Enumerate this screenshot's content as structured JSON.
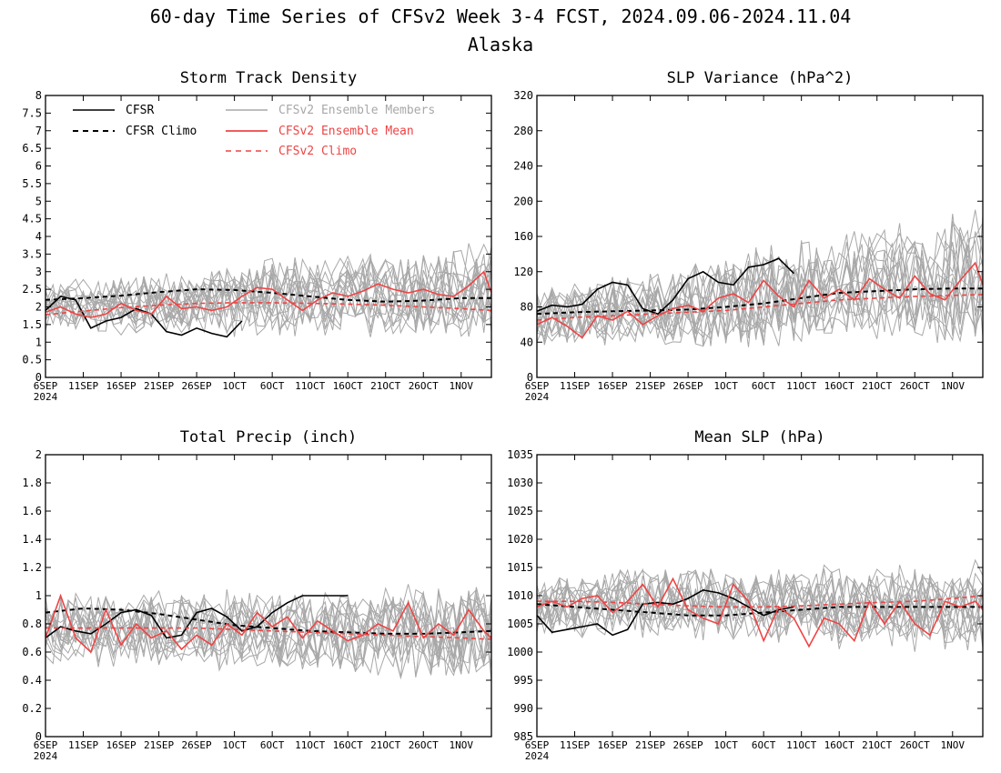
{
  "figure": {
    "title": "60-day Time Series of CFSv2 Week 3-4 FCST, 2024.09.06-2024.11.04",
    "subtitle": "Alaska"
  },
  "colors": {
    "cfsr": "#000000",
    "ensemble_member": "#a8a8a8",
    "ensemble_mean": "#ee4444",
    "cfsv2_climo": "#ee4444"
  },
  "x_axis": {
    "ticks": [
      "6SEP",
      "11SEP",
      "16SEP",
      "21SEP",
      "26SEP",
      "1OCT",
      "6OCT",
      "11OCT",
      "16OCT",
      "21OCT",
      "26OCT",
      "1NOV"
    ],
    "year_label": "2024"
  },
  "legend": {
    "cfsr": "CFSR",
    "cfsr_climo": "CFSR Climo",
    "members": "CFSv2 Ensemble Members",
    "mean": "CFSv2 Ensemble Mean",
    "cfsv2_climo": "CFSv2 Climo"
  },
  "chart_data": [
    {
      "type": "line",
      "title": "Storm Track Density",
      "ylim": [
        0,
        8
      ],
      "yticks": [
        "0",
        "0.5",
        "1",
        "1.5",
        "2",
        "2.5",
        "3",
        "3.5",
        "4",
        "4.5",
        "5",
        "5.5",
        "6",
        "6.5",
        "7",
        "7.5",
        "8"
      ],
      "x_days": [
        0,
        59
      ],
      "series": [
        {
          "name": "CFSR",
          "x": [
            0,
            2,
            4,
            6,
            8,
            10,
            12,
            14,
            16,
            18,
            20,
            22,
            24,
            26
          ],
          "y": [
            1.9,
            2.3,
            2.2,
            1.4,
            1.6,
            1.7,
            1.95,
            1.8,
            1.3,
            1.2,
            1.4,
            1.25,
            1.15,
            1.6
          ]
        },
        {
          "name": "CFSR Climo",
          "x": [
            0,
            5,
            10,
            15,
            20,
            25,
            30,
            35,
            40,
            45,
            50,
            55,
            59
          ],
          "y": [
            2.2,
            2.25,
            2.32,
            2.42,
            2.5,
            2.48,
            2.4,
            2.3,
            2.2,
            2.15,
            2.18,
            2.25,
            2.25
          ]
        },
        {
          "name": "CFSv2 Ensemble Mean",
          "x": [
            0,
            2,
            4,
            6,
            8,
            10,
            12,
            14,
            16,
            18,
            20,
            22,
            24,
            26,
            28,
            30,
            32,
            34,
            36,
            38,
            40,
            42,
            44,
            46,
            48,
            50,
            52,
            54,
            56,
            58,
            59
          ],
          "y": [
            1.85,
            2.0,
            1.8,
            1.7,
            1.8,
            2.1,
            1.9,
            1.8,
            2.3,
            1.95,
            2.0,
            1.9,
            2.0,
            2.3,
            2.55,
            2.5,
            2.2,
            1.9,
            2.2,
            2.4,
            2.3,
            2.45,
            2.65,
            2.5,
            2.4,
            2.5,
            2.35,
            2.3,
            2.6,
            3.0,
            2.4
          ]
        },
        {
          "name": "CFSv2 Climo",
          "x": [
            0,
            5,
            10,
            15,
            20,
            25,
            30,
            35,
            40,
            45,
            50,
            55,
            59
          ],
          "y": [
            1.78,
            1.88,
            1.98,
            2.05,
            2.1,
            2.12,
            2.12,
            2.1,
            2.08,
            2.05,
            2.0,
            1.95,
            1.9
          ]
        }
      ],
      "members_band": {
        "center": [
          1.95,
          2.0,
          2.05,
          2.1,
          2.15,
          2.2,
          2.25,
          2.3,
          2.35,
          2.3,
          2.35,
          2.4,
          2.45
        ],
        "spread": [
          0.8,
          0.85,
          0.9,
          0.95,
          1.0,
          1.1,
          1.15,
          1.2,
          1.2,
          1.25,
          1.3,
          1.35,
          1.4
        ]
      }
    },
    {
      "type": "line",
      "title": "SLP Variance (hPa^2)",
      "ylim": [
        0,
        320
      ],
      "yticks": [
        "0",
        "40",
        "80",
        "120",
        "160",
        "200",
        "240",
        "280",
        "320"
      ],
      "x_days": [
        0,
        59
      ],
      "series": [
        {
          "name": "CFSR",
          "x": [
            0,
            2,
            4,
            6,
            8,
            10,
            12,
            14,
            16,
            18,
            20,
            22,
            24,
            26,
            28,
            30,
            32,
            34
          ],
          "y": [
            75,
            82,
            80,
            83,
            100,
            108,
            105,
            78,
            72,
            88,
            112,
            120,
            108,
            105,
            125,
            128,
            135,
            118
          ]
        },
        {
          "name": "CFSR Climo",
          "x": [
            0,
            5,
            10,
            15,
            20,
            25,
            30,
            35,
            40,
            45,
            50,
            55,
            59
          ],
          "y": [
            72,
            74,
            75,
            76,
            77,
            80,
            84,
            90,
            96,
            98,
            100,
            101,
            101
          ]
        },
        {
          "name": "CFSv2 Ensemble Mean",
          "x": [
            0,
            2,
            4,
            6,
            8,
            10,
            12,
            14,
            16,
            18,
            20,
            22,
            24,
            26,
            28,
            30,
            32,
            34,
            36,
            38,
            40,
            42,
            44,
            46,
            48,
            50,
            52,
            54,
            56,
            58,
            59
          ],
          "y": [
            60,
            68,
            58,
            45,
            70,
            65,
            75,
            60,
            70,
            78,
            82,
            75,
            90,
            95,
            85,
            110,
            92,
            80,
            110,
            90,
            100,
            88,
            112,
            100,
            90,
            115,
            95,
            88,
            110,
            130,
            105
          ]
        },
        {
          "name": "CFSv2 Climo",
          "x": [
            0,
            5,
            10,
            15,
            20,
            25,
            30,
            35,
            40,
            45,
            50,
            55,
            59
          ],
          "y": [
            65,
            68,
            70,
            72,
            74,
            76,
            80,
            84,
            88,
            90,
            92,
            93,
            94
          ]
        }
      ],
      "members_band": {
        "center": [
          68,
          72,
          75,
          78,
          82,
          86,
          90,
          95,
          100,
          105,
          108,
          110,
          112
        ],
        "spread": [
          35,
          38,
          40,
          45,
          50,
          55,
          60,
          65,
          65,
          70,
          75,
          80,
          85
        ]
      }
    },
    {
      "type": "line",
      "title": "Total Precip (inch)",
      "ylim": [
        0,
        2
      ],
      "yticks": [
        "0",
        "0.2",
        "0.4",
        "0.6",
        "0.8",
        "1",
        "1.2",
        "1.4",
        "1.6",
        "1.8",
        "2"
      ],
      "x_days": [
        0,
        59
      ],
      "series": [
        {
          "name": "CFSR",
          "x": [
            0,
            2,
            4,
            6,
            8,
            10,
            12,
            14,
            16,
            18,
            20,
            22,
            24,
            26,
            28,
            30,
            32,
            34,
            36,
            38,
            40
          ],
          "y": [
            0.7,
            0.78,
            0.75,
            0.73,
            0.8,
            0.88,
            0.9,
            0.86,
            0.7,
            0.72,
            0.88,
            0.91,
            0.85,
            0.75,
            0.78,
            0.88,
            0.95,
            1.0,
            1.0,
            1.0,
            1.0
          ]
        },
        {
          "name": "CFSR Climo",
          "x": [
            0,
            5,
            10,
            15,
            20,
            25,
            30,
            35,
            40,
            45,
            50,
            55,
            59
          ],
          "y": [
            0.88,
            0.91,
            0.9,
            0.87,
            0.83,
            0.79,
            0.77,
            0.75,
            0.74,
            0.73,
            0.73,
            0.74,
            0.75
          ]
        },
        {
          "name": "CFSv2 Ensemble Mean",
          "x": [
            0,
            2,
            4,
            6,
            8,
            10,
            12,
            14,
            16,
            18,
            20,
            22,
            24,
            26,
            28,
            30,
            32,
            34,
            36,
            38,
            40,
            42,
            44,
            46,
            48,
            50,
            52,
            54,
            56,
            58,
            59
          ],
          "y": [
            0.7,
            1.0,
            0.7,
            0.6,
            0.9,
            0.65,
            0.8,
            0.7,
            0.75,
            0.62,
            0.72,
            0.65,
            0.8,
            0.72,
            0.88,
            0.78,
            0.85,
            0.7,
            0.82,
            0.75,
            0.68,
            0.72,
            0.8,
            0.75,
            0.95,
            0.7,
            0.8,
            0.72,
            0.9,
            0.75,
            0.7
          ]
        },
        {
          "name": "CFSv2 Climo",
          "x": [
            0,
            5,
            10,
            15,
            20,
            25,
            30,
            35,
            40,
            45,
            50,
            55,
            59
          ],
          "y": [
            0.77,
            0.77,
            0.77,
            0.77,
            0.77,
            0.76,
            0.75,
            0.74,
            0.73,
            0.72,
            0.71,
            0.7,
            0.69
          ]
        }
      ],
      "members_band": {
        "center": [
          0.78,
          0.78,
          0.77,
          0.77,
          0.77,
          0.76,
          0.76,
          0.75,
          0.75,
          0.74,
          0.74,
          0.73,
          0.73
        ],
        "spread": [
          0.28,
          0.28,
          0.28,
          0.3,
          0.3,
          0.3,
          0.3,
          0.32,
          0.32,
          0.32,
          0.34,
          0.34,
          0.34
        ]
      }
    },
    {
      "type": "line",
      "title": "Mean SLP (hPa)",
      "ylim": [
        985,
        1035
      ],
      "yticks": [
        "985",
        "990",
        "995",
        "1000",
        "1005",
        "1010",
        "1015",
        "1020",
        "1025",
        "1030",
        "1035"
      ],
      "x_days": [
        0,
        59
      ],
      "series": [
        {
          "name": "CFSR",
          "x": [
            0,
            2,
            4,
            6,
            8,
            10,
            12,
            14,
            16,
            18,
            20,
            22,
            24,
            26,
            28,
            30,
            32,
            34
          ],
          "y": [
            1006.5,
            1003.5,
            1004,
            1004.5,
            1005,
            1003,
            1004,
            1008.5,
            1008.8,
            1008.5,
            1009.5,
            1011,
            1010.5,
            1009.5,
            1008,
            1006.5,
            1007.5,
            1008
          ]
        },
        {
          "name": "CFSR Climo",
          "x": [
            0,
            5,
            10,
            15,
            20,
            25,
            30,
            35,
            40,
            45,
            50,
            55,
            59
          ],
          "y": [
            1008.5,
            1008,
            1007.5,
            1007,
            1006.5,
            1006.5,
            1007,
            1007.5,
            1008,
            1008,
            1008,
            1008,
            1008
          ]
        },
        {
          "name": "CFSv2 Ensemble Mean",
          "x": [
            0,
            2,
            4,
            6,
            8,
            10,
            12,
            14,
            16,
            18,
            20,
            22,
            24,
            26,
            28,
            30,
            32,
            34,
            36,
            38,
            40,
            42,
            44,
            46,
            48,
            50,
            52,
            54,
            56,
            58,
            59
          ],
          "y": [
            1008,
            1009,
            1008,
            1009.5,
            1010,
            1007,
            1009,
            1012,
            1008,
            1013,
            1007.5,
            1006,
            1005,
            1012,
            1009,
            1002,
            1008,
            1006,
            1001,
            1006,
            1005,
            1002,
            1009,
            1005,
            1009,
            1005,
            1003,
            1009,
            1008,
            1009,
            1007.5
          ]
        },
        {
          "name": "CFSv2 Climo",
          "x": [
            0,
            5,
            10,
            15,
            20,
            25,
            30,
            35,
            40,
            45,
            50,
            55,
            59
          ],
          "y": [
            1009,
            1009,
            1008.8,
            1008.5,
            1008.2,
            1008,
            1008,
            1008.2,
            1008.5,
            1008.8,
            1009,
            1009.5,
            1010
          ]
        }
      ],
      "members_band": {
        "center": [
          1008,
          1008.5,
          1009,
          1009,
          1009,
          1008.5,
          1008.5,
          1008.5,
          1008,
          1008,
          1008,
          1008,
          1008
        ],
        "spread": [
          5,
          6,
          6,
          7,
          7,
          7,
          7,
          7,
          7.5,
          7.5,
          8,
          8,
          8
        ]
      }
    }
  ]
}
